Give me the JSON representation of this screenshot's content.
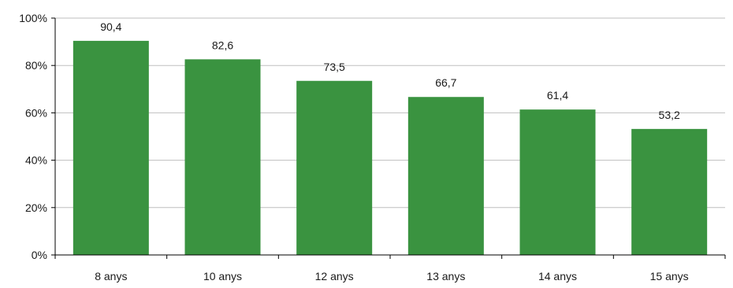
{
  "chart_data": {
    "type": "bar",
    "categories": [
      "8 anys",
      "10 anys",
      "12 anys",
      "13 anys",
      "14 anys",
      "15 anys"
    ],
    "values": [
      90.4,
      82.6,
      73.5,
      66.7,
      61.4,
      53.2
    ],
    "value_labels": [
      "90,4",
      "82,6",
      "73,5",
      "66,7",
      "61,4",
      "53,2"
    ],
    "ylim": [
      0,
      100
    ],
    "yticks": [
      0,
      20,
      40,
      60,
      80,
      100
    ],
    "ytick_labels": [
      "0%",
      "20%",
      "40%",
      "60%",
      "80%",
      "100%"
    ],
    "title": "",
    "xlabel": "",
    "ylabel": "",
    "grid": true,
    "bar_color": "#3a9340",
    "grid_color": "#bfbfbf",
    "axis_color": "#000000"
  }
}
